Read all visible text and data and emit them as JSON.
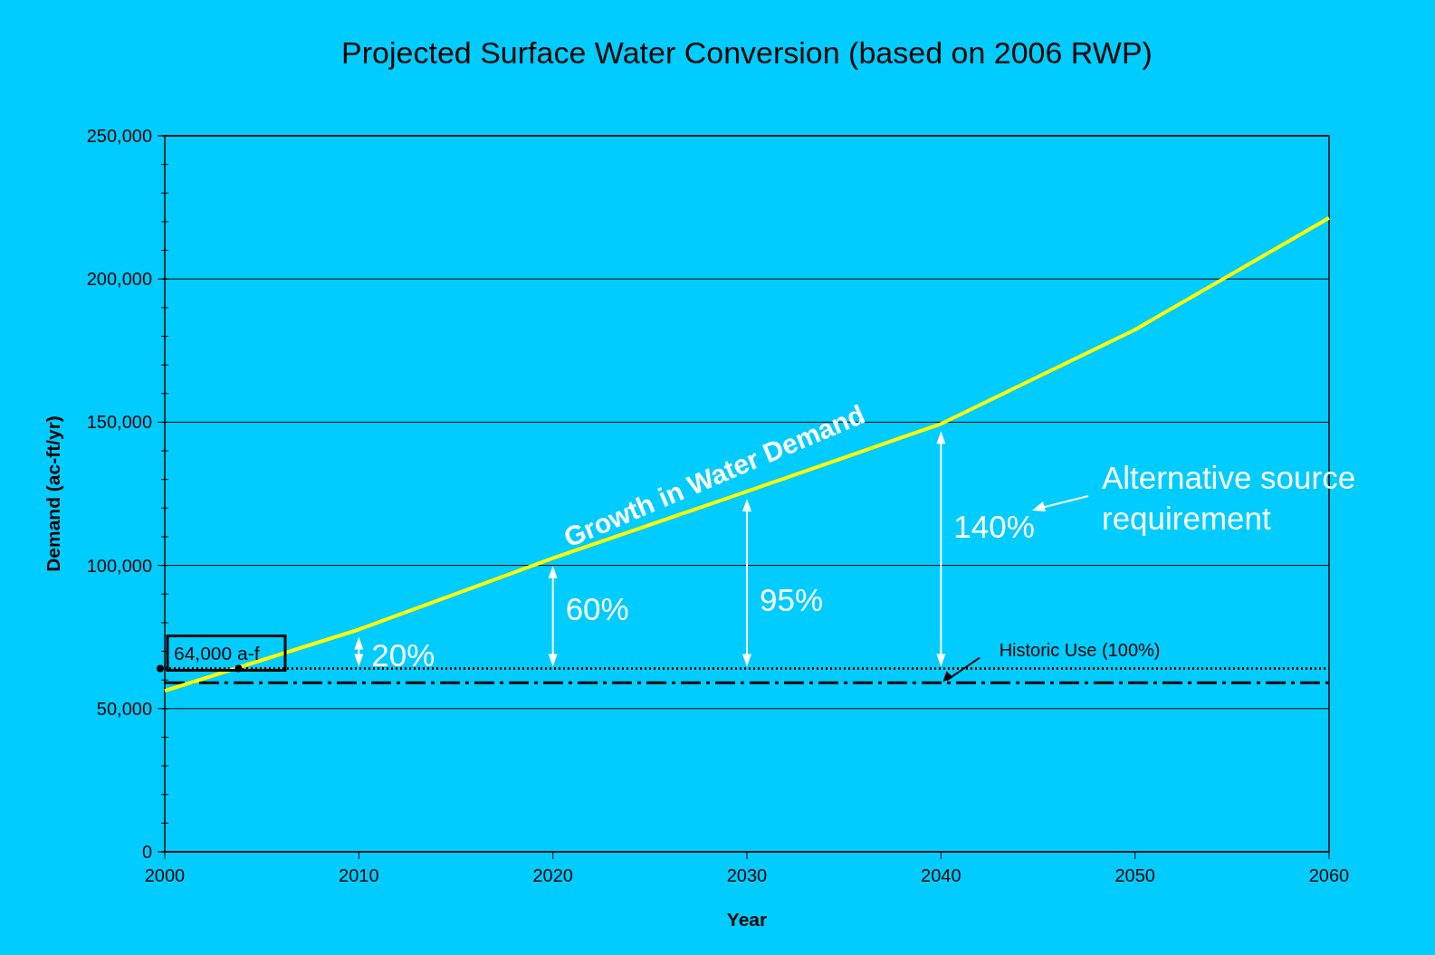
{
  "chart_data": {
    "type": "line",
    "title": "Projected Surface Water Conversion (based on 2006 RWP)",
    "xlabel": "Year",
    "ylabel": "Demand (ac-ft/yr)",
    "x": [
      2000,
      2010,
      2020,
      2030,
      2040,
      2050,
      2060
    ],
    "series": [
      {
        "color": "#ffff00",
        "values": [
          56200,
          77600,
          102500,
          125800,
          149400,
          182300,
          221300
        ]
      }
    ],
    "xlim": [
      2000,
      2060
    ],
    "xticks": [
      2000,
      2010,
      2020,
      2030,
      2040,
      2050,
      2060
    ],
    "ylim": [
      0,
      250000
    ],
    "yticks": [
      {
        "value": 0,
        "label": "0"
      },
      {
        "value": 50000,
        "label": "50,000"
      },
      {
        "value": 100000,
        "label": "100,000"
      },
      {
        "value": 150000,
        "label": "150,000"
      },
      {
        "value": 200000,
        "label": "200,000"
      },
      {
        "value": 250000,
        "label": "250,000"
      }
    ],
    "grid": "y",
    "ref_lines": [
      {
        "axis": "y",
        "value": 64000,
        "label": "64,000 a-f",
        "color": "#000000",
        "line_style": "dotted"
      },
      {
        "axis": "y",
        "value": 59000,
        "label": "Historic Use (100%)",
        "color": "#000000",
        "line_style": "dashed"
      }
    ],
    "annotations": [
      "20%",
      "60%",
      "95%",
      "140%",
      "Growth in Water Demand",
      "Alternative source requirement"
    ]
  }
}
